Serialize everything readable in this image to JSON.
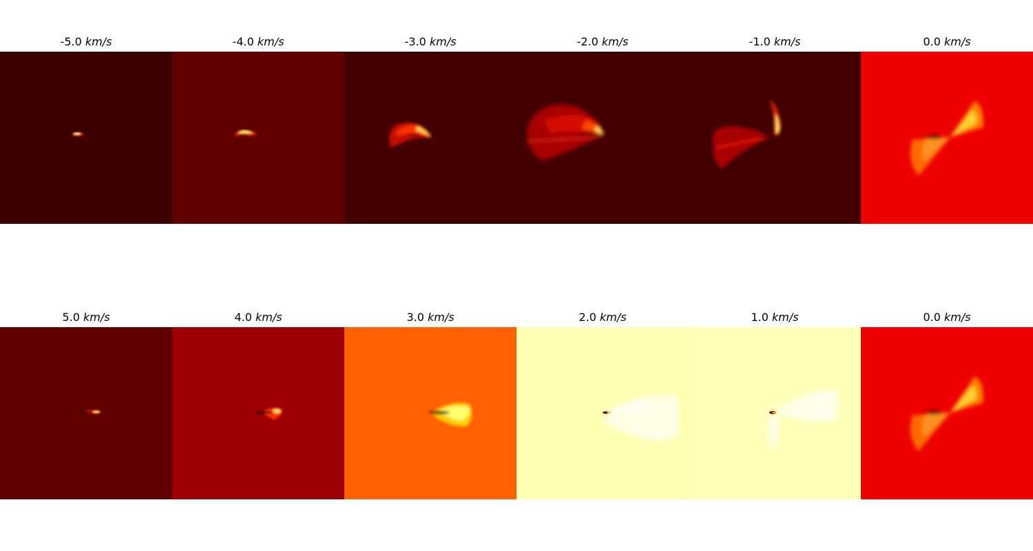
{
  "unit": "km/s",
  "panels": [
    {
      "velocity": "-5.0",
      "bg": "#3c0000"
    },
    {
      "velocity": "-4.0",
      "bg": "#600000"
    },
    {
      "velocity": "-3.0",
      "bg": "#420000"
    },
    {
      "velocity": "-2.0",
      "bg": "#420000"
    },
    {
      "velocity": "-1.0",
      "bg": "#420000"
    },
    {
      "velocity": "0.0",
      "bg": "#ee0000"
    },
    {
      "velocity": "5.0",
      "bg": "#600000"
    },
    {
      "velocity": "4.0",
      "bg": "#9c0000"
    },
    {
      "velocity": "3.0",
      "bg": "#ff6000"
    },
    {
      "velocity": "2.0",
      "bg": "#ffffb2"
    },
    {
      "velocity": "1.0",
      "bg": "#ffffb8"
    },
    {
      "velocity": "0.0",
      "bg": "#ee0000"
    }
  ],
  "colormap": "hot"
}
